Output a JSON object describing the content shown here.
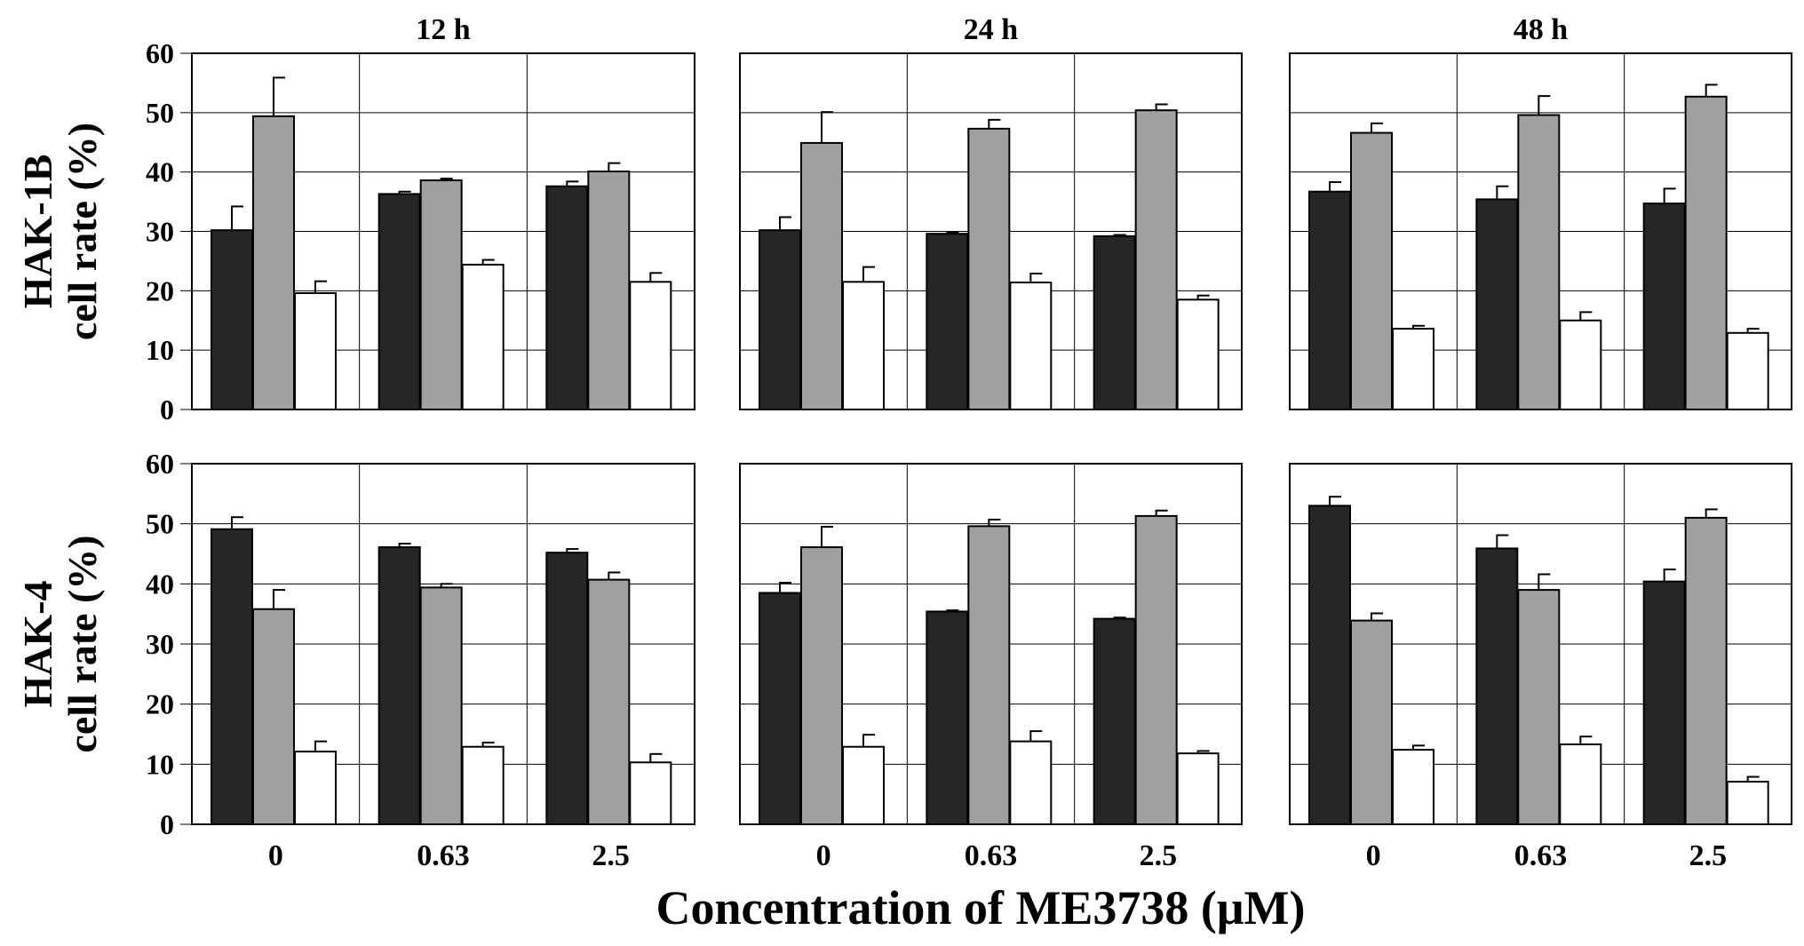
{
  "chart_data": {
    "type": "bar",
    "xlabel": "Concentration of ME3738 (μM)",
    "categories": [
      "0",
      "0.63",
      "2.5"
    ],
    "column_titles": [
      "12 h",
      "24 h",
      "48 h"
    ],
    "y_ticks": [
      "60",
      "50",
      "40",
      "30",
      "20",
      "10",
      "0"
    ],
    "ylim": [
      0,
      60
    ],
    "grid": true,
    "series_colors": [
      "#262626",
      "#a0a0a0",
      "#ffffff"
    ],
    "rows": [
      {
        "ylabel_line1": "HAK-1B",
        "ylabel_line2": "cell rate (%)",
        "panels": [
          {
            "title": "12 h",
            "series": [
              {
                "values": [
                  30.2,
                  36.3,
                  37.6
                ],
                "errors": [
                  4.0,
                  0.4,
                  0.8
                ]
              },
              {
                "values": [
                  49.4,
                  38.6,
                  40.1
                ],
                "errors": [
                  6.5,
                  0.3,
                  1.4
                ]
              },
              {
                "values": [
                  19.6,
                  24.4,
                  21.5
                ],
                "errors": [
                  2.0,
                  0.8,
                  1.5
                ]
              }
            ]
          },
          {
            "title": "24 h",
            "series": [
              {
                "values": [
                  30.2,
                  29.6,
                  29.2
                ],
                "errors": [
                  2.2,
                  0.2,
                  0.2
                ]
              },
              {
                "values": [
                  44.9,
                  47.3,
                  50.4
                ],
                "errors": [
                  5.2,
                  1.5,
                  1.0
                ]
              },
              {
                "values": [
                  21.5,
                  21.4,
                  18.5
                ],
                "errors": [
                  2.5,
                  1.5,
                  0.7
                ]
              }
            ]
          },
          {
            "title": "48 h",
            "series": [
              {
                "values": [
                  36.7,
                  35.4,
                  34.7
                ],
                "errors": [
                  1.6,
                  2.2,
                  2.5
                ]
              },
              {
                "values": [
                  46.6,
                  49.6,
                  52.7
                ],
                "errors": [
                  1.6,
                  3.2,
                  2.0
                ]
              },
              {
                "values": [
                  13.6,
                  15.0,
                  12.9
                ],
                "errors": [
                  0.5,
                  1.4,
                  0.7
                ]
              }
            ]
          }
        ]
      },
      {
        "ylabel_line1": "HAK-4",
        "ylabel_line2": "cell rate (%)",
        "panels": [
          {
            "title": "12 h",
            "series": [
              {
                "values": [
                  49.1,
                  46.1,
                  45.2
                ],
                "errors": [
                  2.0,
                  0.6,
                  0.6
                ]
              },
              {
                "values": [
                  35.8,
                  39.4,
                  40.7
                ],
                "errors": [
                  3.2,
                  0.6,
                  1.2
                ]
              },
              {
                "values": [
                  12.1,
                  12.9,
                  10.3
                ],
                "errors": [
                  1.7,
                  0.7,
                  1.4
                ]
              }
            ]
          },
          {
            "title": "24 h",
            "series": [
              {
                "values": [
                  38.5,
                  35.4,
                  34.2
                ],
                "errors": [
                  1.7,
                  0.2,
                  0.2
                ]
              },
              {
                "values": [
                  46.1,
                  49.6,
                  51.3
                ],
                "errors": [
                  3.4,
                  1.1,
                  0.9
                ]
              },
              {
                "values": [
                  12.9,
                  13.8,
                  11.8
                ],
                "errors": [
                  2.0,
                  1.7,
                  0.4
                ]
              }
            ]
          },
          {
            "title": "48 h",
            "series": [
              {
                "values": [
                  53.0,
                  45.9,
                  40.4
                ],
                "errors": [
                  1.5,
                  2.2,
                  2.0
                ]
              },
              {
                "values": [
                  33.9,
                  39.0,
                  51.0
                ],
                "errors": [
                  1.2,
                  2.6,
                  1.4
                ]
              },
              {
                "values": [
                  12.4,
                  13.3,
                  7.1
                ],
                "errors": [
                  0.7,
                  1.3,
                  0.8
                ]
              }
            ]
          }
        ]
      }
    ]
  }
}
